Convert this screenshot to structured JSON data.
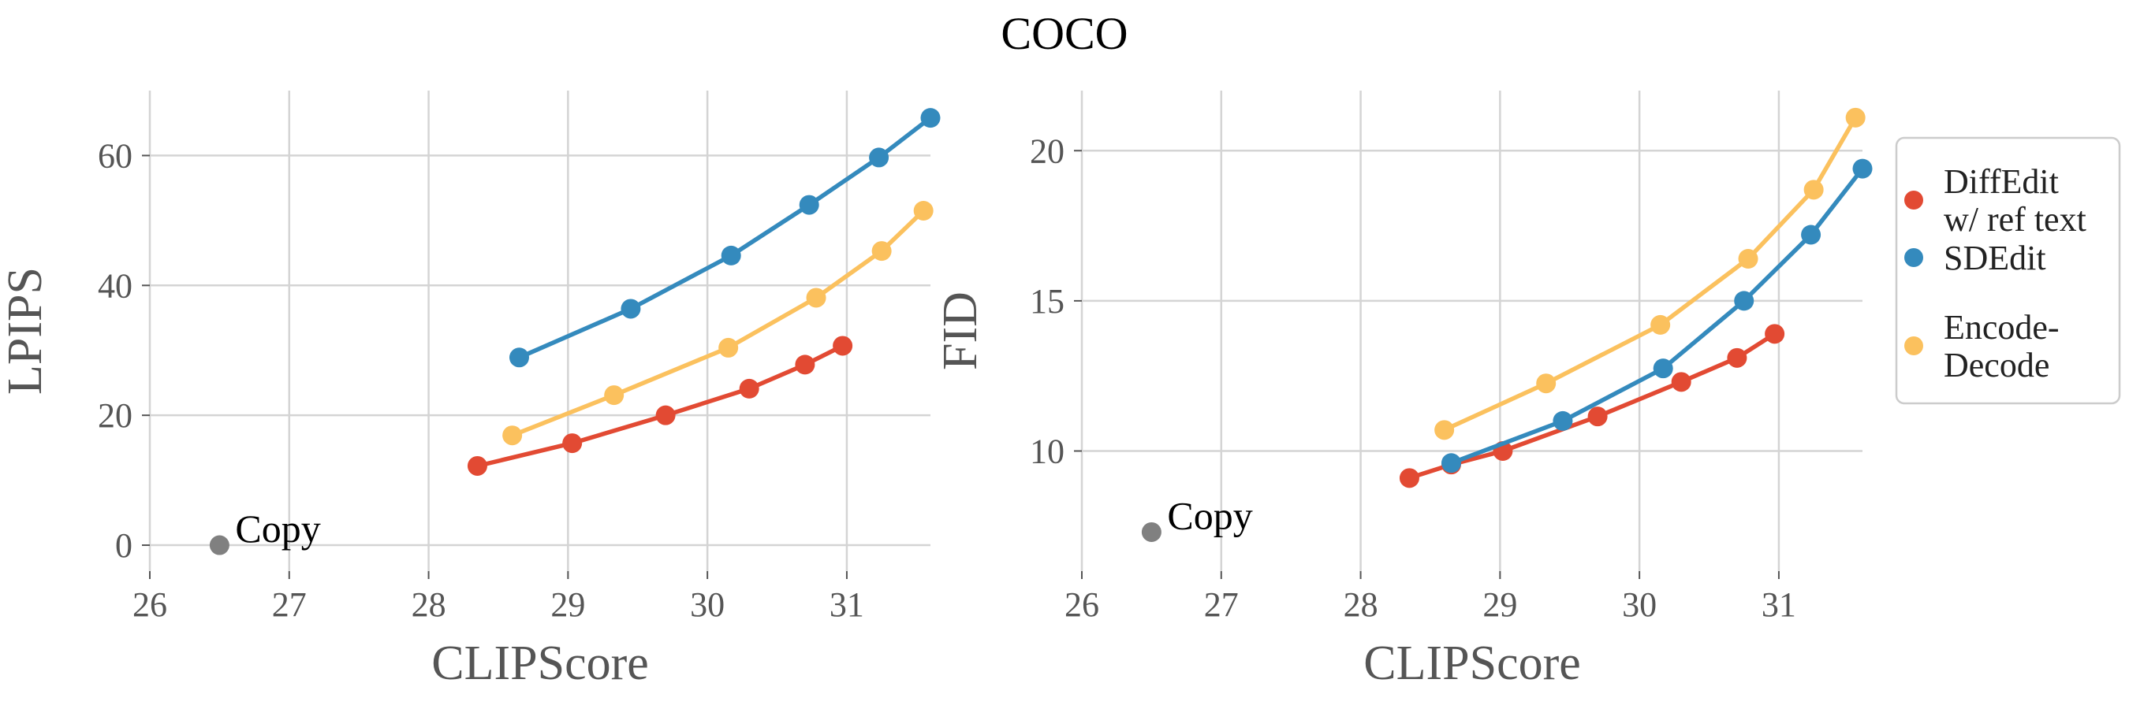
{
  "figure": {
    "title": "COCO"
  },
  "chart_data": [
    {
      "type": "line",
      "xlabel": "CLIPScore",
      "ylabel": "LPIPS",
      "xlim": [
        26,
        31.6
      ],
      "ylim": [
        -4,
        70
      ],
      "xticks": [
        26,
        27,
        28,
        29,
        30,
        31
      ],
      "yticks": [
        0,
        20,
        40,
        60
      ],
      "grid": true,
      "series": [
        {
          "key": "diffedit",
          "x": [
            28.35,
            29.03,
            29.7,
            30.3,
            30.7,
            30.97
          ],
          "y": [
            12.2,
            15.7,
            20.0,
            24.1,
            27.8,
            30.7
          ]
        },
        {
          "key": "sdedit",
          "x": [
            28.65,
            29.45,
            30.17,
            30.73,
            31.23,
            31.6
          ],
          "y": [
            28.9,
            36.4,
            44.6,
            52.4,
            59.7,
            65.8
          ]
        },
        {
          "key": "encode_decode",
          "x": [
            28.6,
            29.33,
            30.15,
            30.78,
            31.25,
            31.55
          ],
          "y": [
            16.9,
            23.1,
            30.4,
            38.1,
            45.3,
            51.5
          ]
        }
      ],
      "annotations": [
        {
          "text": "Copy",
          "x": 26.5,
          "y": 0.0
        }
      ]
    },
    {
      "type": "line",
      "xlabel": "CLIPScore",
      "ylabel": "FID",
      "xlim": [
        26,
        31.6
      ],
      "ylim": [
        6.0,
        22.0
      ],
      "xticks": [
        26,
        27,
        28,
        29,
        30,
        31
      ],
      "yticks": [
        10,
        15,
        20
      ],
      "grid": true,
      "series": [
        {
          "key": "diffedit",
          "x": [
            28.35,
            28.65,
            29.02,
            29.7,
            30.3,
            30.7,
            30.97
          ],
          "y": [
            9.1,
            9.55,
            10.0,
            11.15,
            12.3,
            13.1,
            13.9
          ]
        },
        {
          "key": "sdedit",
          "x": [
            28.65,
            29.45,
            30.17,
            30.75,
            31.23,
            31.6
          ],
          "y": [
            9.6,
            11.0,
            12.75,
            15.0,
            17.2,
            19.4
          ]
        },
        {
          "key": "encode_decode",
          "x": [
            28.6,
            29.33,
            30.15,
            30.78,
            31.25,
            31.55
          ],
          "y": [
            10.7,
            12.25,
            14.2,
            16.4,
            18.7,
            21.1
          ]
        }
      ],
      "annotations": [
        {
          "text": "Copy",
          "x": 26.5,
          "y": 7.3
        }
      ]
    }
  ],
  "legend": {
    "placement": "right",
    "items": [
      {
        "key": "diffedit",
        "lines": [
          "DiffEdit",
          "w/ ref text"
        ]
      },
      {
        "key": "sdedit",
        "lines": [
          "SDEdit"
        ]
      },
      {
        "key": "encode_decode",
        "lines": [
          "Encode-",
          "Decode"
        ]
      }
    ]
  },
  "colors": {
    "diffedit": "#e24a33",
    "sdedit": "#348abd",
    "encode_decode": "#fbc15e",
    "copy": "#808080"
  }
}
